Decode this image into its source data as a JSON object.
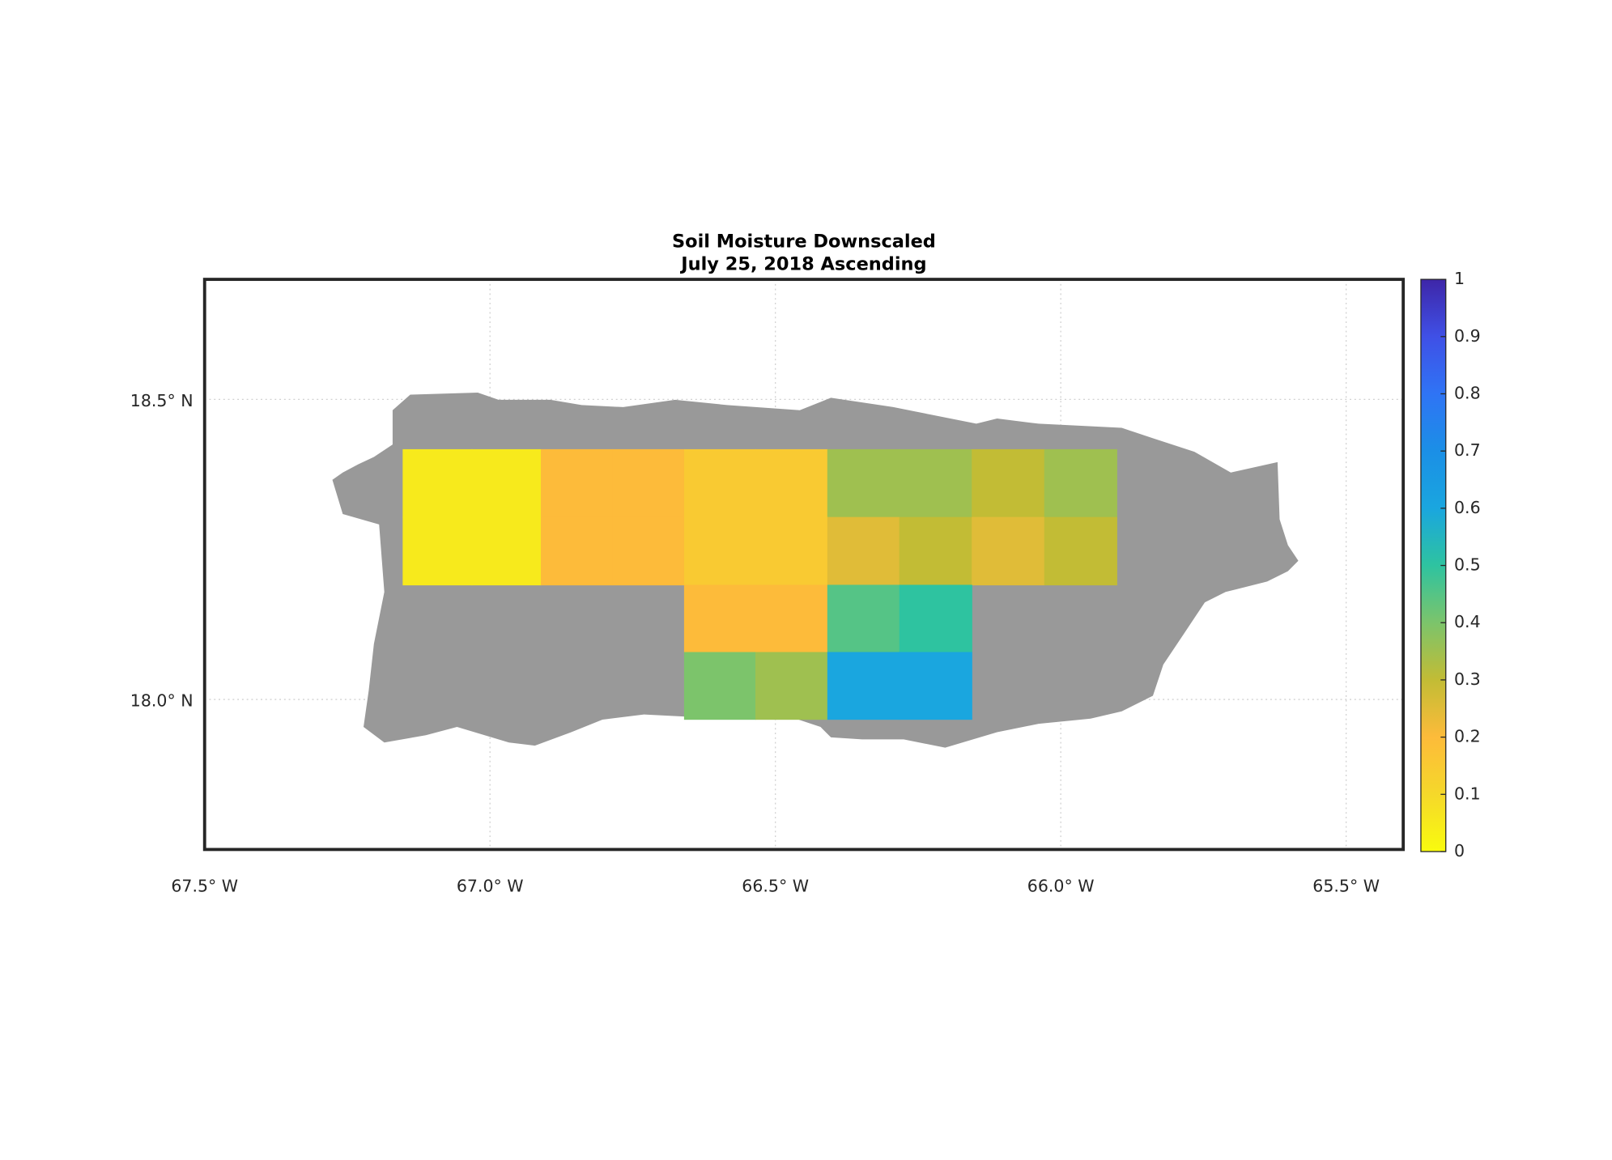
{
  "chart_data": {
    "type": "map",
    "title": "Soil Moisture Downscaled",
    "subtitle": "July 25, 2018 Ascending",
    "xlim": [
      -67.5,
      -65.4
    ],
    "ylim": [
      17.75,
      18.7
    ],
    "xticks": [
      {
        "value": -67.5,
        "label": "67.5° W"
      },
      {
        "value": -67.0,
        "label": "67.0° W"
      },
      {
        "value": -66.5,
        "label": "66.5° W"
      },
      {
        "value": -66.0,
        "label": "66.0° W"
      },
      {
        "value": -65.5,
        "label": "65.5° W"
      }
    ],
    "yticks": [
      {
        "value": 18.0,
        "label": "18.0° N"
      },
      {
        "value": 18.5,
        "label": "18.5° N"
      }
    ],
    "grid": true,
    "land_color": "#999999",
    "clim": [
      0,
      1
    ],
    "cticks": [
      0,
      0.1,
      0.2,
      0.3,
      0.4,
      0.5,
      0.6,
      0.7,
      0.8,
      0.9,
      1
    ],
    "colormap": [
      "#f9fb0e",
      "#f5d82a",
      "#fdbb3a",
      "#c2bc35",
      "#7cc46b",
      "#2ec3a0",
      "#1aa6df",
      "#1b8fe6",
      "#2f74f5",
      "#3f50e6",
      "#3e26a8"
    ],
    "grid_data": {
      "lon_edges": [
        -67.153,
        -67.032,
        -66.911,
        -66.786,
        -66.66,
        -66.535,
        -66.409,
        -66.283,
        -66.156,
        -66.029,
        -65.902
      ],
      "lat_edges": [
        18.417,
        18.304,
        18.191,
        18.079,
        17.967
      ],
      "values": [
        [
          0.05,
          0.05,
          0.2,
          0.2,
          0.15,
          0.15,
          0.35,
          0.35,
          0.3,
          0.35
        ],
        [
          0.05,
          0.05,
          0.2,
          0.2,
          0.15,
          0.15,
          0.25,
          0.3,
          0.25,
          0.3
        ],
        [
          null,
          null,
          null,
          null,
          0.2,
          0.2,
          0.45,
          0.5,
          null,
          null
        ],
        [
          null,
          null,
          null,
          null,
          0.4,
          0.35,
          0.6,
          0.6,
          null,
          null
        ]
      ]
    }
  }
}
